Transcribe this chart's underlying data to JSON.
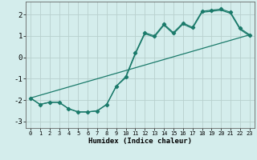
{
  "xlabel": "Humidex (Indice chaleur)",
  "ylabel": "",
  "xlim": [
    -0.5,
    23.5
  ],
  "ylim": [
    -3.3,
    2.6
  ],
  "xticks": [
    0,
    1,
    2,
    3,
    4,
    5,
    6,
    7,
    8,
    9,
    10,
    11,
    12,
    13,
    14,
    15,
    16,
    17,
    18,
    19,
    20,
    21,
    22,
    23
  ],
  "yticks": [
    -3,
    -2,
    -1,
    0,
    1,
    2
  ],
  "bg_color": "#d4edec",
  "grid_color": "#b8d0ce",
  "line_color": "#1a7a6a",
  "line1_x": [
    0,
    1,
    2,
    3,
    4,
    5,
    6,
    7,
    8,
    9,
    10,
    11,
    12,
    13,
    14,
    15,
    16,
    17,
    18,
    19,
    20,
    21,
    22,
    23
  ],
  "line1_y": [
    -1.9,
    -2.2,
    -2.1,
    -2.1,
    -2.4,
    -2.55,
    -2.55,
    -2.5,
    -2.2,
    -1.35,
    -0.9,
    0.2,
    1.15,
    1.0,
    1.55,
    1.15,
    1.6,
    1.4,
    2.15,
    2.2,
    2.25,
    2.1,
    1.35,
    1.05
  ],
  "line2_x": [
    0,
    1,
    2,
    3,
    4,
    5,
    6,
    7,
    8,
    9,
    10,
    11,
    12,
    13,
    14,
    15,
    16,
    17,
    18,
    19,
    20,
    21,
    22,
    23
  ],
  "line2_y": [
    -1.9,
    -2.2,
    -2.1,
    -2.1,
    -2.4,
    -2.55,
    -2.55,
    -2.5,
    -2.2,
    -1.35,
    -0.95,
    0.15,
    1.1,
    0.95,
    1.5,
    1.1,
    1.55,
    1.35,
    2.1,
    2.15,
    2.2,
    2.05,
    1.3,
    1.0
  ],
  "line3_x": [
    0,
    23
  ],
  "line3_y": [
    -1.9,
    1.05
  ]
}
